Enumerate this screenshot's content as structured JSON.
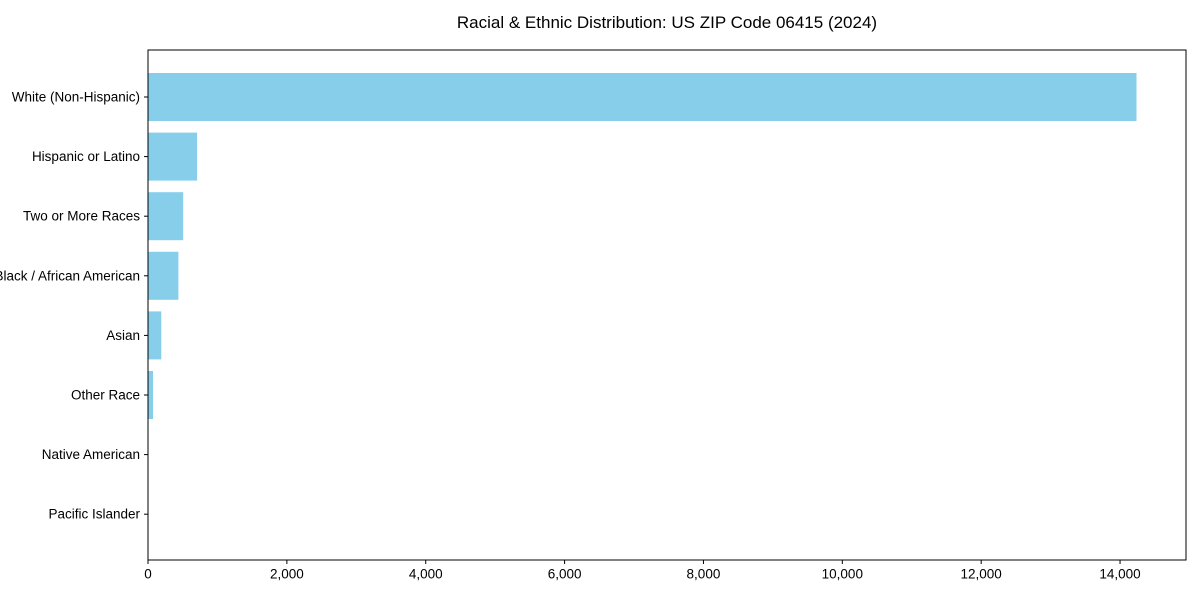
{
  "chart_data": {
    "type": "bar",
    "orientation": "horizontal",
    "title": "Racial & Ethnic Distribution: US ZIP Code 06415 (2024)",
    "categories": [
      "White (Non-Hispanic)",
      "Hispanic or Latino",
      "Two or More Races",
      "Black / African American",
      "Asian",
      "Other Race",
      "Native American",
      "Pacific Islander"
    ],
    "values": [
      14230,
      700,
      500,
      430,
      185,
      65,
      0,
      0
    ],
    "xlabel": "",
    "ylabel": "",
    "xlim": [
      0,
      14950
    ],
    "xticks": [
      0,
      2000,
      4000,
      6000,
      8000,
      10000,
      12000,
      14000
    ],
    "xtick_labels": [
      "0",
      "2,000",
      "4,000",
      "6,000",
      "8,000",
      "10,000",
      "12,000",
      "14,000"
    ],
    "bar_color": "#87CEEB",
    "axis_color": "#000000",
    "text_color": "#000000",
    "background": "#FFFFFF",
    "grid": false,
    "legend": false
  }
}
